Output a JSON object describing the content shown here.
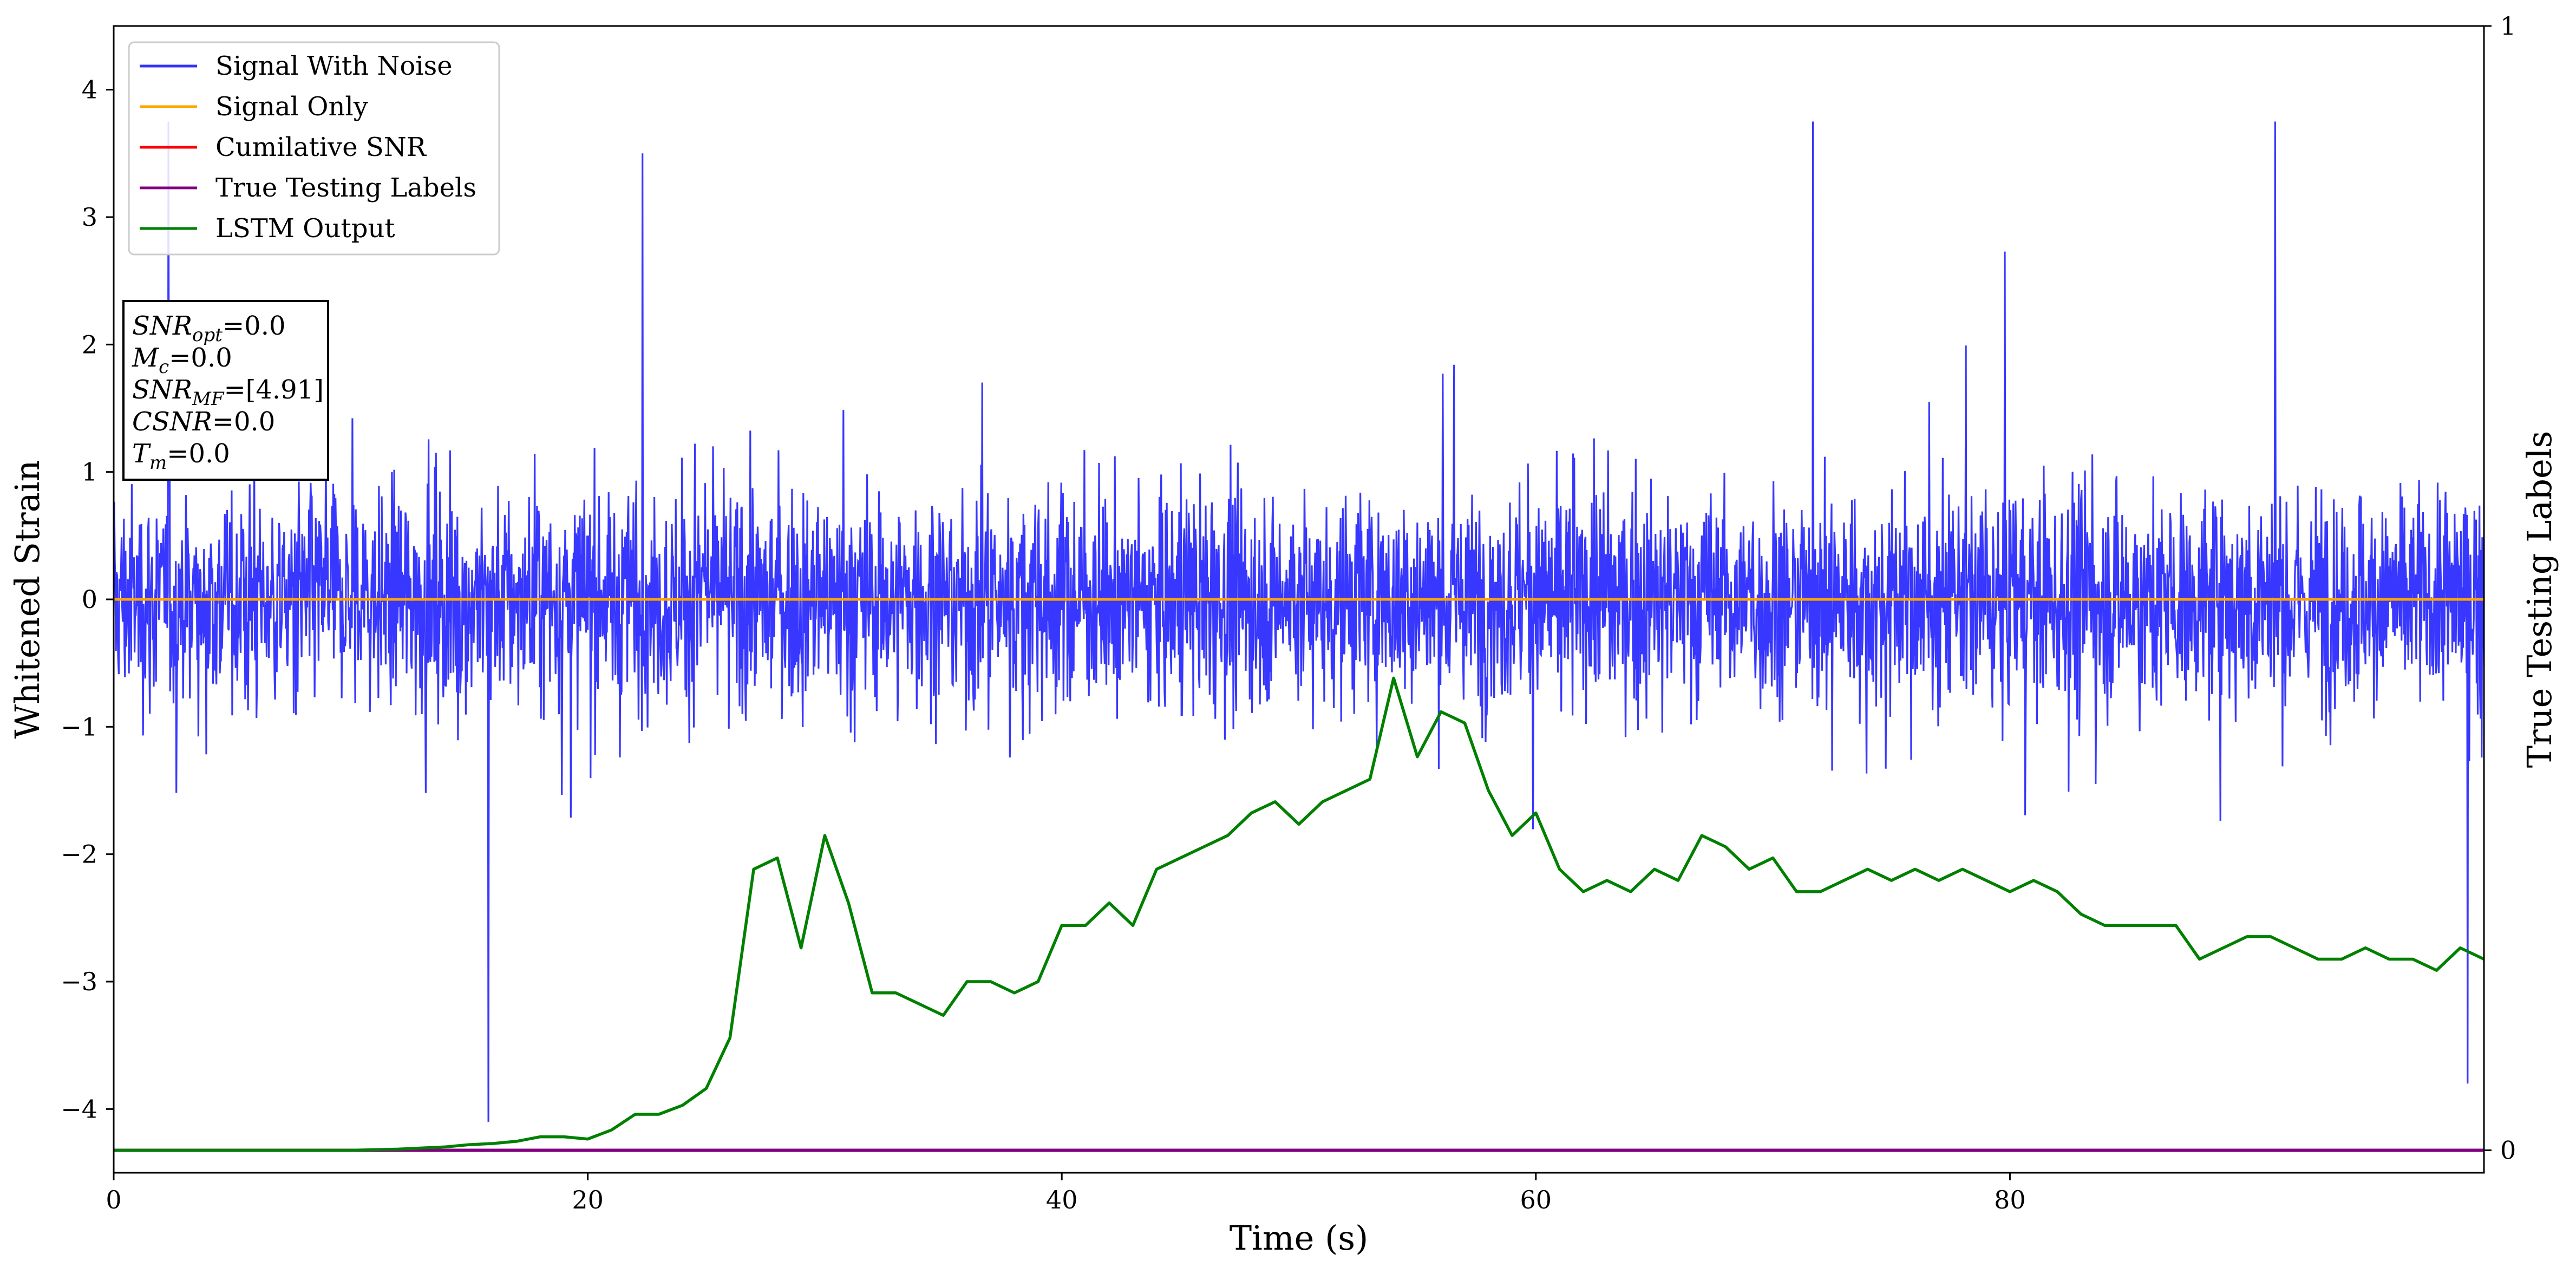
{
  "chart_data": {
    "type": "line",
    "xlabel": "Time (s)",
    "ylabel": "Whitened Strain",
    "y2label": "True Testing Labels",
    "xlim": [
      0,
      100
    ],
    "ylim": [
      -4.5,
      4.5
    ],
    "y2lim": [
      -0.02,
      1.0
    ],
    "x_ticks": [
      0,
      20,
      40,
      60,
      80
    ],
    "y_ticks": [
      -4,
      -3,
      -2,
      -1,
      0,
      1,
      2,
      3,
      4
    ],
    "y2_ticks": [
      0,
      1
    ],
    "legend_position": "top-left",
    "grid": false,
    "series": [
      {
        "name": "Signal With Noise",
        "color": "#3333ff",
        "description_values": "dense noise approx. within [-4.1, 3.75]",
        "peaks": [
          {
            "x": 2.3,
            "y": 3.75
          },
          {
            "x": 15.8,
            "y": -4.1
          },
          {
            "x": 22.3,
            "y": 3.5
          },
          {
            "x": 71.7,
            "y": 3.75
          },
          {
            "x": 91.2,
            "y": 3.75
          },
          {
            "x": 99.3,
            "y": -3.8
          }
        ]
      },
      {
        "name": "Signal Only",
        "color": "#ffa500",
        "values": "constant 0"
      },
      {
        "name": "Cumilative SNR",
        "color": "#ff0000"
      },
      {
        "name": "True Testing Labels",
        "color": "#800080",
        "values": "constant 0 (right axis)"
      },
      {
        "name": "LSTM Output",
        "color": "#008000",
        "axis": "right",
        "x": [
          0,
          5,
          10,
          12,
          14,
          15,
          16,
          17,
          18,
          19,
          20,
          21,
          22,
          23,
          24,
          25,
          26,
          27,
          28,
          29,
          30,
          31,
          32,
          33,
          34,
          35,
          36,
          37,
          38,
          39,
          40,
          41,
          42,
          43,
          44,
          45,
          46,
          47,
          48,
          49,
          50,
          51,
          52,
          53,
          54,
          55,
          56,
          57,
          58,
          59,
          60,
          61,
          62,
          63,
          64,
          65,
          66,
          67,
          68,
          69,
          70,
          71,
          72,
          73,
          74,
          75,
          76,
          77,
          78,
          79,
          80,
          81,
          82,
          83,
          84,
          85,
          86,
          87,
          88,
          89,
          90,
          91,
          92,
          93,
          94,
          95,
          96,
          97,
          98,
          99,
          100
        ],
        "y": [
          0,
          0,
          0,
          0.001,
          0.003,
          0.005,
          0.006,
          0.008,
          0.012,
          0.012,
          0.01,
          0.018,
          0.032,
          0.032,
          0.04,
          0.055,
          0.1,
          0.25,
          0.26,
          0.18,
          0.28,
          0.22,
          0.14,
          0.14,
          0.13,
          0.12,
          0.15,
          0.15,
          0.14,
          0.15,
          0.2,
          0.2,
          0.22,
          0.2,
          0.25,
          0.26,
          0.27,
          0.28,
          0.3,
          0.31,
          0.29,
          0.31,
          0.32,
          0.33,
          0.42,
          0.35,
          0.39,
          0.38,
          0.32,
          0.28,
          0.3,
          0.25,
          0.23,
          0.24,
          0.23,
          0.25,
          0.24,
          0.28,
          0.27,
          0.25,
          0.26,
          0.23,
          0.23,
          0.24,
          0.25,
          0.24,
          0.25,
          0.24,
          0.25,
          0.24,
          0.23,
          0.24,
          0.23,
          0.21,
          0.2,
          0.2,
          0.2,
          0.2,
          0.17,
          0.18,
          0.19,
          0.19,
          0.18,
          0.17,
          0.17,
          0.18,
          0.17,
          0.17,
          0.16,
          0.18,
          0.17
        ]
      }
    ]
  },
  "info_box": {
    "lines": [
      {
        "main": "SNR",
        "sub": "opt",
        "rest": "=0.0"
      },
      {
        "main": "M",
        "sub": "c",
        "rest": "=0.0"
      },
      {
        "main": "SNR",
        "sub": "MF",
        "rest": "=[4.91]"
      },
      {
        "main": "CSNR",
        "sub": "",
        "rest": "=0.0"
      },
      {
        "main": "T",
        "sub": "m",
        "rest": "=0.0"
      }
    ]
  }
}
